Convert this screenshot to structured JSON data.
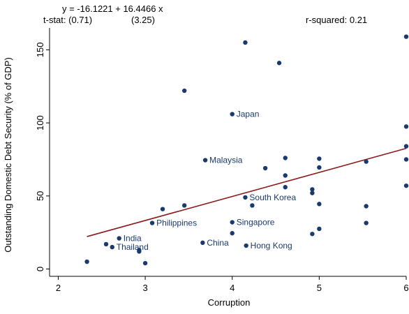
{
  "chart_data": {
    "type": "scatter",
    "title": "",
    "annotations": {
      "equation": "y = -16.1221 + 16.4466 x",
      "tstat_label": "t-stat: (0.71)",
      "tstat_slope": "(3.25)",
      "rsquared": "r-squared: 0.21"
    },
    "xlabel": "Corruption",
    "ylabel": "Outstanding Domestic Debt Security (% of GDP)",
    "xlim": [
      1.9,
      6.0
    ],
    "ylim": [
      -5,
      165
    ],
    "xticks": [
      2,
      3,
      4,
      5,
      6
    ],
    "xtick_labels": [
      "2",
      "3",
      "4",
      "5",
      "6"
    ],
    "yticks": [
      0,
      50,
      100,
      150
    ],
    "ytick_labels": [
      "0",
      "50",
      "100",
      "150"
    ],
    "grid": false,
    "fit_line": {
      "intercept": -16.1221,
      "slope": 16.4466,
      "x_range": [
        2.33,
        6.0
      ],
      "color": "#8b1a1a"
    },
    "marker_color": "#1a3a6e",
    "points": [
      {
        "x": 2.33,
        "y": 5,
        "label": ""
      },
      {
        "x": 2.55,
        "y": 17,
        "label": ""
      },
      {
        "x": 2.62,
        "y": 15,
        "label": "Thailand"
      },
      {
        "x": 2.7,
        "y": 21,
        "label": "India"
      },
      {
        "x": 2.93,
        "y": 13,
        "label": ""
      },
      {
        "x": 2.93,
        "y": 12,
        "label": ""
      },
      {
        "x": 3.0,
        "y": 4,
        "label": ""
      },
      {
        "x": 3.08,
        "y": 31.5,
        "label": "Philippines"
      },
      {
        "x": 3.2,
        "y": 41,
        "label": ""
      },
      {
        "x": 3.45,
        "y": 43.5,
        "label": ""
      },
      {
        "x": 3.45,
        "y": 122,
        "label": ""
      },
      {
        "x": 3.66,
        "y": 18,
        "label": "China"
      },
      {
        "x": 3.69,
        "y": 74.5,
        "label": "Malaysia"
      },
      {
        "x": 4.0,
        "y": 106,
        "label": "Japan"
      },
      {
        "x": 4.0,
        "y": 32,
        "label": "Singapore"
      },
      {
        "x": 4.0,
        "y": 24.5,
        "label": ""
      },
      {
        "x": 4.15,
        "y": 155,
        "label": ""
      },
      {
        "x": 4.15,
        "y": 49,
        "label": "South Korea"
      },
      {
        "x": 4.16,
        "y": 16,
        "label": "Hong Kong"
      },
      {
        "x": 4.23,
        "y": 43.5,
        "label": ""
      },
      {
        "x": 4.38,
        "y": 69,
        "label": ""
      },
      {
        "x": 4.54,
        "y": 141,
        "label": ""
      },
      {
        "x": 4.61,
        "y": 76,
        "label": ""
      },
      {
        "x": 4.61,
        "y": 64,
        "label": ""
      },
      {
        "x": 4.61,
        "y": 56,
        "label": ""
      },
      {
        "x": 4.92,
        "y": 54.5,
        "label": ""
      },
      {
        "x": 4.92,
        "y": 52,
        "label": ""
      },
      {
        "x": 4.92,
        "y": 24,
        "label": ""
      },
      {
        "x": 5.0,
        "y": 75.5,
        "label": ""
      },
      {
        "x": 5.0,
        "y": 69.5,
        "label": ""
      },
      {
        "x": 5.0,
        "y": 44.5,
        "label": ""
      },
      {
        "x": 5.0,
        "y": 27.5,
        "label": ""
      },
      {
        "x": 5.54,
        "y": 73.5,
        "label": ""
      },
      {
        "x": 5.54,
        "y": 43,
        "label": ""
      },
      {
        "x": 5.54,
        "y": 31.5,
        "label": ""
      },
      {
        "x": 6.0,
        "y": 159,
        "label": ""
      },
      {
        "x": 6.0,
        "y": 97.5,
        "label": ""
      },
      {
        "x": 6.0,
        "y": 84,
        "label": ""
      },
      {
        "x": 6.0,
        "y": 75,
        "label": ""
      },
      {
        "x": 6.0,
        "y": 57,
        "label": ""
      }
    ]
  }
}
